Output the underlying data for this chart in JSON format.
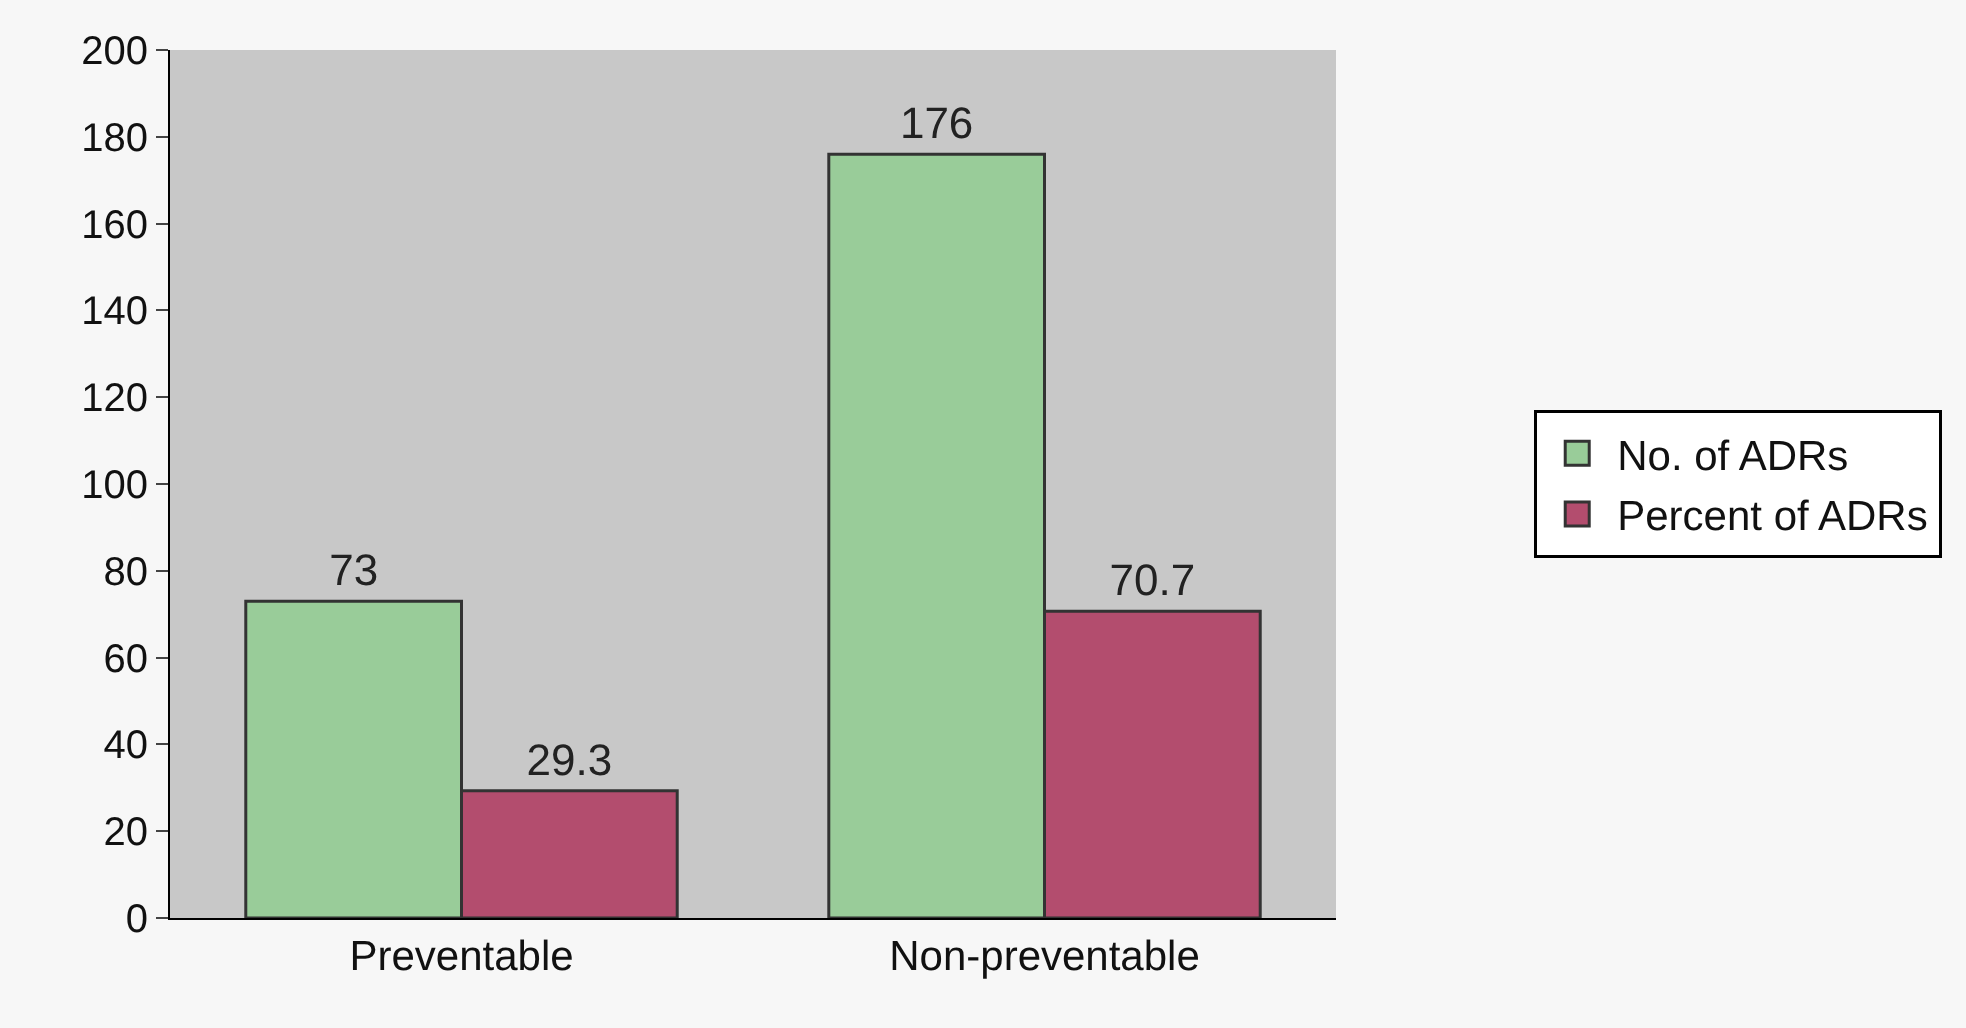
{
  "chart_data": {
    "type": "bar",
    "categories": [
      "Preventable",
      "Non-preventable"
    ],
    "series": [
      {
        "name": "No. of ADRs",
        "color": "#99cc99",
        "values": [
          73,
          176
        ]
      },
      {
        "name": "Percent of ADRs",
        "color": "#b34d6e",
        "values": [
          29.3,
          70.7
        ]
      }
    ],
    "ylim": [
      0,
      200
    ],
    "yticks": [
      0,
      20,
      40,
      60,
      80,
      100,
      120,
      140,
      160,
      180,
      200
    ],
    "data_labels": true,
    "legend": "right",
    "grid": false
  }
}
